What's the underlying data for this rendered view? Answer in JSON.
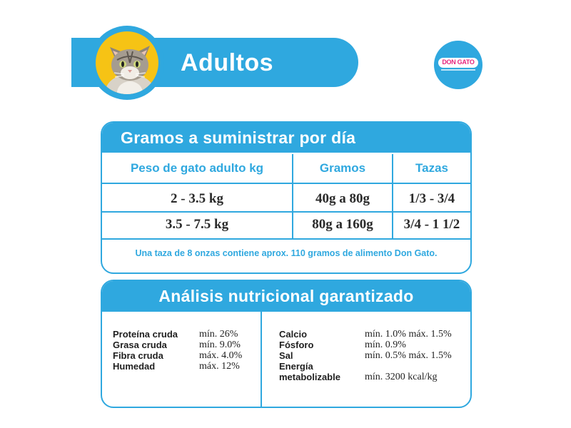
{
  "header": {
    "title": "Adultos",
    "logo_text": "DON GATO"
  },
  "feeding": {
    "title": "Gramos a suministrar por día",
    "columns": [
      "Peso de gato adulto kg",
      "Gramos",
      "Tazas"
    ],
    "rows": [
      [
        "2 - 3.5 kg",
        "40g a 80g",
        "1/3 - 3/4"
      ],
      [
        "3.5 - 7.5 kg",
        "80g a 160g",
        "3/4 - 1 1/2"
      ]
    ],
    "note": "Una taza de 8 onzas contiene aprox. 110 gramos de alimento Don Gato."
  },
  "nutrition": {
    "title": "Análisis nutricional garantizado",
    "left": [
      {
        "label": "Proteína cruda",
        "value": "mín. 26%"
      },
      {
        "label": "Grasa cruda",
        "value": "mín. 9.0%"
      },
      {
        "label": "Fibra cruda",
        "value": "máx. 4.0%"
      },
      {
        "label": "Humedad",
        "value": "máx. 12%"
      }
    ],
    "right": [
      {
        "label": "Calcio",
        "value": "mín. 1.0% máx. 1.5%"
      },
      {
        "label": "Fósforo",
        "value": "mín. 0.9%"
      },
      {
        "label": "Sal",
        "value": "mín. 0.5% máx. 1.5%"
      },
      {
        "label": "Energía",
        "value": ""
      },
      {
        "label": "metabolizable",
        "value": "mín. 3200 kcal/kg"
      }
    ]
  },
  "colors": {
    "accent": "#2fa8df",
    "cat_background": "#f6c315",
    "logo_text": "#e5257d"
  }
}
